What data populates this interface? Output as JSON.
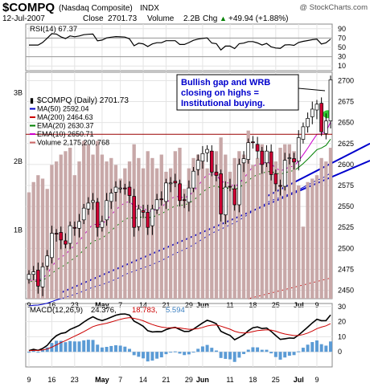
{
  "header": {
    "symbol": "$COMPQ",
    "name": "(Nasdaq Composite)",
    "exchange": "INDX",
    "watermark": "@ StockCharts.com",
    "date": "12-Jul-2007",
    "close_label": "Close",
    "close_value": "2701.73",
    "volume_label": "Volume",
    "volume_value": "2.2B",
    "chg_label": "Chg",
    "chg_value": "+49.94 (+1.88%)",
    "chg_arrow": "▲"
  },
  "rsi_panel": {
    "label": "RSI(14) 67.37",
    "ticks": [
      "90",
      "70",
      "50",
      "30",
      "10"
    ]
  },
  "price_panel": {
    "legend": [
      {
        "text": "$COMPQ (Daily) 2701.73",
        "color": "#000000"
      },
      {
        "text": "MA(50) 2592.04",
        "color": "#0000cc"
      },
      {
        "text": "MA(200) 2464.63",
        "color": "#cc0000"
      },
      {
        "text": "EMA(20) 2630.37",
        "color": "#008000"
      },
      {
        "text": "EMA(10) 2650.71",
        "color": "#cc00cc"
      },
      {
        "text": "Volume 2,175,200,768",
        "color": "#cc6666"
      }
    ],
    "annotation": [
      "Bullish gap and WRB",
      "closing on highs =",
      "Institutional buying."
    ],
    "price_ticks": [
      "2700",
      "2675",
      "2650",
      "2625",
      "2600",
      "2575",
      "2550",
      "2525",
      "2500",
      "2475",
      "2450"
    ],
    "volume_ticks": [
      "3B",
      "2B",
      "1B"
    ]
  },
  "macd_panel": {
    "label": "MACD(12,26,9)",
    "value1": "24.376,",
    "value2": "18.783,",
    "value3": "5.594",
    "ticks": [
      "30",
      "20",
      "10",
      "0"
    ]
  },
  "x_axis": {
    "price_labels": [
      "9",
      "16",
      "23",
      "May",
      "7",
      "14",
      "21",
      "29",
      "Jun",
      "11",
      "18",
      "25",
      "Jul",
      "9"
    ],
    "macd_labels": [
      "9",
      "16",
      "23",
      "May",
      "7",
      "14",
      "21",
      "29",
      "Jun",
      "11",
      "18",
      "25",
      "Jul",
      "9"
    ]
  },
  "colors": {
    "up": "#ffffff",
    "down": "#cc0033",
    "volume": "#c8a8a8",
    "rsi": "#000000",
    "macd": "#000000",
    "signal": "#cc0000",
    "histogram": "#5b9bd5",
    "trendline": "#0000cc",
    "gap_marker": "#33cc33",
    "annotation_text": "#0000cc"
  },
  "chart_data": {
    "type": "candlestick",
    "dates": [
      "Apr 9",
      "Apr 10",
      "Apr 11",
      "Apr 12",
      "Apr 13",
      "Apr 16",
      "Apr 17",
      "Apr 18",
      "Apr 19",
      "Apr 20",
      "Apr 23",
      "Apr 24",
      "Apr 25",
      "Apr 26",
      "Apr 27",
      "Apr 30",
      "May 1",
      "May 2",
      "May 3",
      "May 4",
      "May 7",
      "May 8",
      "May 9",
      "May 10",
      "May 11",
      "May 14",
      "May 15",
      "May 16",
      "May 17",
      "May 18",
      "May 21",
      "May 22",
      "May 23",
      "May 24",
      "May 25",
      "May 29",
      "May 30",
      "May 31",
      "Jun 1",
      "Jun 4",
      "Jun 5",
      "Jun 6",
      "Jun 7",
      "Jun 8",
      "Jun 11",
      "Jun 12",
      "Jun 13",
      "Jun 14",
      "Jun 15",
      "Jun 18",
      "Jun 19",
      "Jun 20",
      "Jun 21",
      "Jun 22",
      "Jun 25",
      "Jun 26",
      "Jun 27",
      "Jun 28",
      "Jun 29",
      "Jul 2",
      "Jul 3",
      "Jul 5",
      "Jul 6",
      "Jul 9",
      "Jul 10",
      "Jul 11",
      "Jul 12"
    ],
    "close": [
      2469,
      2472,
      2455,
      2478,
      2491,
      2518,
      2517,
      2510,
      2505,
      2527,
      2524,
      2532,
      2548,
      2554,
      2557,
      2525,
      2532,
      2557,
      2566,
      2573,
      2572,
      2571,
      2563,
      2525,
      2547,
      2543,
      2525,
      2547,
      2558,
      2558,
      2578,
      2578,
      2578,
      2557,
      2557,
      2572,
      2592,
      2605,
      2613,
      2618,
      2591,
      2587,
      2541,
      2573,
      2573,
      2552,
      2600,
      2607,
      2626,
      2626,
      2616,
      2600,
      2616,
      2588,
      2577,
      2574,
      2605,
      2608,
      2603,
      2632,
      2645,
      2655,
      2666,
      2672,
      2639,
      2652,
      2701
    ],
    "volume_billions": [
      1.55,
      1.7,
      1.8,
      1.75,
      1.6,
      1.95,
      2.0,
      2.1,
      2.15,
      2.2,
      1.8,
      2.0,
      2.3,
      2.25,
      2.1,
      2.3,
      2.1,
      2.0,
      2.05,
      1.95,
      1.75,
      1.9,
      2.0,
      2.25,
      2.05,
      1.9,
      2.15,
      2.05,
      1.9,
      2.1,
      1.85,
      1.9,
      2.15,
      2.2,
      1.6,
      1.9,
      2.05,
      2.1,
      2.0,
      1.9,
      2.1,
      2.15,
      2.35,
      2.1,
      1.85,
      2.05,
      2.15,
      2.1,
      2.45,
      1.95,
      2.05,
      2.25,
      2.1,
      2.15,
      2.0,
      2.2,
      2.25,
      2.25,
      2.15,
      1.65,
      1.05,
      1.7,
      1.75,
      1.8,
      2.05,
      2.0,
      2.2
    ],
    "y_range": [
      2440,
      2710
    ],
    "volume_range_billions": [
      0,
      3.3
    ],
    "rsi_range": [
      0,
      100
    ],
    "macd_range": [
      -10,
      32
    ]
  }
}
